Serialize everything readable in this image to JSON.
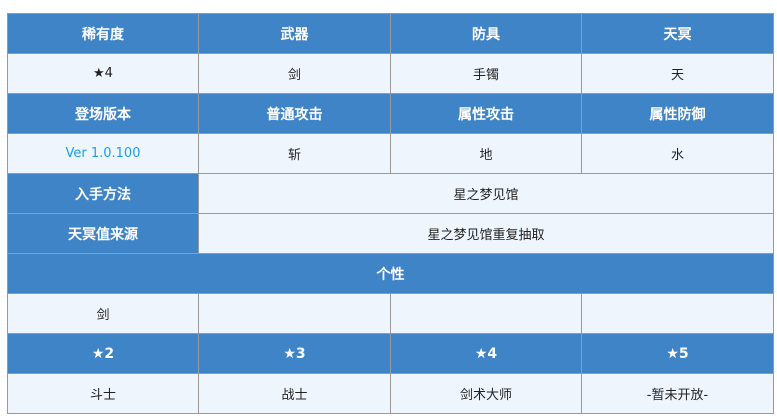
{
  "colors": {
    "header_bg": "#3f84c6",
    "cell_bg": "#eef5fd",
    "link": "#1a9ff0"
  },
  "row1_headers": [
    "稀有度",
    "武器",
    "防具",
    "天冥"
  ],
  "row1_values": [
    "★4",
    "剑",
    "手镯",
    "天"
  ],
  "row2_headers": [
    "登场版本",
    "普通攻击",
    "属性攻击",
    "属性防御"
  ],
  "row2_values": [
    "Ver 1.0.100",
    "斩",
    "地",
    "水"
  ],
  "obtain": {
    "label": "入手方法",
    "value": "星之梦见馆"
  },
  "tenmei_source": {
    "label": "天冥值来源",
    "value": "星之梦见馆重复抽取"
  },
  "personality": {
    "title": "个性",
    "values": [
      "剑",
      "",
      "",
      ""
    ]
  },
  "star_headers": [
    "★2",
    "★3",
    "★4",
    "★5"
  ],
  "star_values": [
    "斗士",
    "战士",
    "剑术大师",
    "-暂未开放-"
  ]
}
